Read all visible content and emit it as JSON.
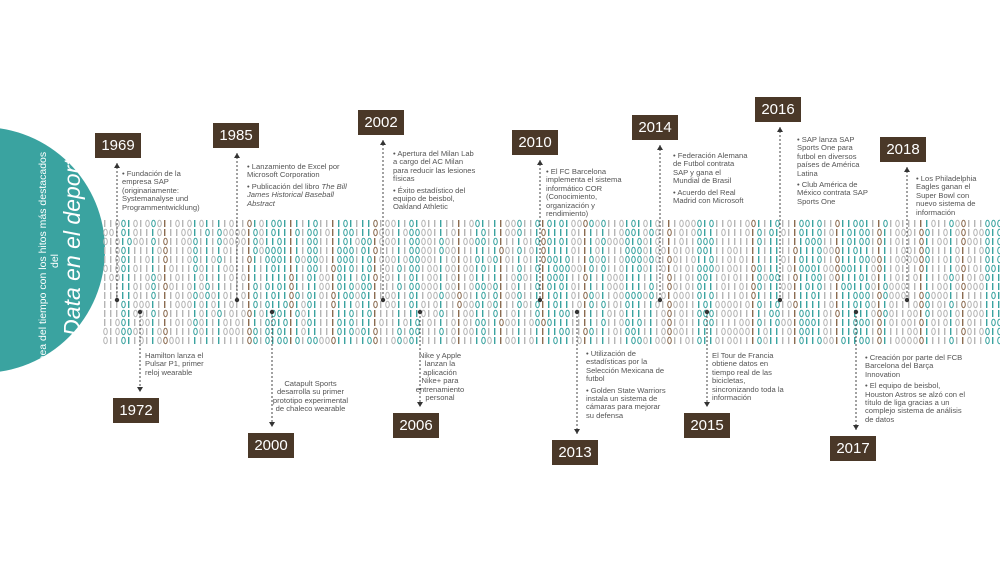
{
  "header": {
    "intro": "Línea del tiempo con los hitos más destacados del",
    "title": "Big Data en el deporte"
  },
  "events": [
    {
      "year": "1969",
      "items": [
        "Fundación de la empresa SAP (originariamente: Systemanalyse und Programmentwicklung)"
      ]
    },
    {
      "year": "1972",
      "items": [
        "Hamilton lanza el Pulsar P1, primer reloj wearable"
      ]
    },
    {
      "year": "1985",
      "items": [
        "Lanzamiento de Excel por Microsoft Corporation",
        {
          "text": "Publicación del libro",
          "italic": "The Bill James Historical Baseball Abstract"
        }
      ]
    },
    {
      "year": "2000",
      "items": [
        "Catapult Sports desarrolla su primer prototipo experimental de chaleco wearable"
      ]
    },
    {
      "year": "2002",
      "items": [
        "Apertura del Milan Lab a cargo del AC Milan para reducir las lesiones físicas",
        "Éxito estadístico del equipo de beisbol, Oakland Athletic"
      ]
    },
    {
      "year": "2006",
      "items": [
        "Nike y Apple lanzan la aplicación Nike+ para entrenamiento personal"
      ]
    },
    {
      "year": "2010",
      "items": [
        "El FC Barcelona implementa el sistema informático COR (Conocimiento, organización y rendimiento)"
      ]
    },
    {
      "year": "2013",
      "items": [
        "Utilización de estadísticas por la Selección Mexicana de futbol",
        "Golden State Warriors instala un sistema de cámaras para mejorar su defensa"
      ]
    },
    {
      "year": "2014",
      "items": [
        "Federación Alemana de Futbol contrata SAP y gana el Mundial de Brasil",
        "Acuerdo del Real Madrid con Microsoft"
      ]
    },
    {
      "year": "2015",
      "items": [
        "El Tour de Francia obtiene datos en tiempo real de las bicicletas, sincronizando toda la información"
      ]
    },
    {
      "year": "2016",
      "items": [
        "SAP lanza SAP Sports One para futbol en diversos países de América Latina",
        "Club América de México contrata SAP Sports One"
      ]
    },
    {
      "year": "2017",
      "items": [
        "Creación por parte del FCB Barcelona del Barça Innovation",
        "El equipo de beisbol, Houston Astros se alzó con el título de liga gracias a un complejo sistema de análisis de datos"
      ]
    },
    {
      "year": "2018",
      "items": [
        "Los Philadelphia Eagles ganan el Super Bowl con nuevo sistema de información"
      ]
    }
  ]
}
